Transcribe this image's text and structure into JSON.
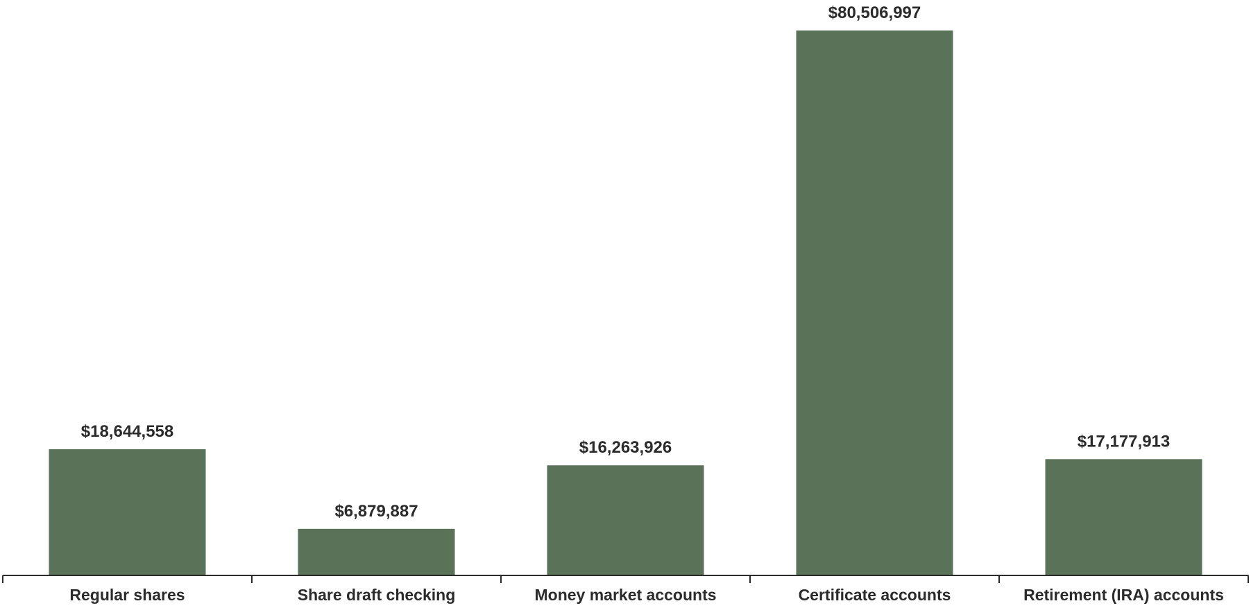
{
  "chart_data": {
    "type": "bar",
    "categories": [
      "Regular shares",
      "Share draft checking",
      "Money market accounts",
      "Certificate accounts",
      "Retirement (IRA) accounts"
    ],
    "values": [
      18644558,
      6879887,
      16263926,
      80506997,
      17177913
    ],
    "data_labels": [
      "$18,644,558",
      "$6,879,887",
      "$16,263,926",
      "$80,506,997",
      "$17,177,913"
    ],
    "title": "",
    "xlabel": "",
    "ylabel": "",
    "ylim": [
      0,
      80506997
    ],
    "grid": false,
    "legend": "none",
    "colors": {
      "bar": "#5a7258",
      "axis": "#2b2b2b",
      "text": "#2b2b2b"
    }
  }
}
